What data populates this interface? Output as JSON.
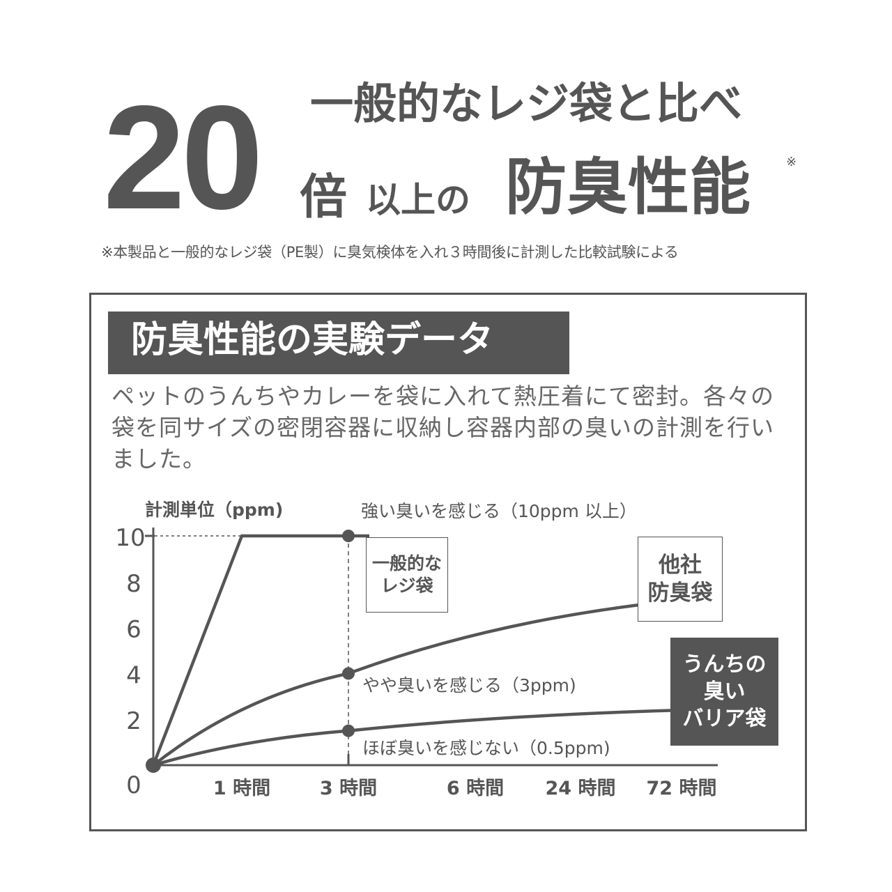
{
  "headline": {
    "line1": "一般的なレジ袋と比べ",
    "number": "20",
    "bai": "倍",
    "ijou": "以上の",
    "emphasis": "防臭性能",
    "note_mark": "※"
  },
  "footnote": "※本製品と一般的なレジ袋（PE製）に臭気検体を入れ３時間後に計測した比較試験による",
  "section": {
    "title": "防臭性能の実験データ",
    "description_lines": [
      "ペットのうんちやカレーを袋に入れて熱圧着にて密封。各々の",
      "袋を同サイズの密閉容器に収納し容器内部の臭いの計測を行い",
      "ました。"
    ]
  },
  "chart_data": {
    "type": "line",
    "ylabel": "計測単位（ppm)",
    "y_ticks": [
      "0",
      "2",
      "4",
      "6",
      "8",
      "10"
    ],
    "ylim": [
      0,
      10
    ],
    "categories": [
      "0",
      "1 時間",
      "3 時間",
      "6 時間",
      "24 時間",
      "72 時間"
    ],
    "x_tick_labels": [
      "1 時間",
      "3 時間",
      "6 時間",
      "24 時間",
      "72 時間"
    ],
    "grid": false,
    "color": "#555555",
    "series": [
      {
        "name": "一般的な\nレジ袋",
        "label_lines": [
          "一般的な",
          "レジ袋"
        ],
        "box_style": "outline",
        "points": [
          {
            "x": "0",
            "y": 0
          },
          {
            "x": "1 時間",
            "y": 10
          },
          {
            "x": "3 時間",
            "y": 10
          }
        ],
        "marker_at": "3 時間",
        "curve": false
      },
      {
        "name": "他社\n防臭袋",
        "label_lines": [
          "他社",
          "防臭袋"
        ],
        "box_style": "outline",
        "points": [
          {
            "x": "0",
            "y": 0
          },
          {
            "x": "3 時間",
            "y": 4
          },
          {
            "x": "72 時間",
            "y": 7.2
          }
        ],
        "marker_at": "3 時間",
        "curve": true
      },
      {
        "name": "うんちの\n臭い\nバリア袋",
        "label_lines": [
          "うんちの",
          "臭い",
          "バリア袋"
        ],
        "box_style": "filled",
        "points": [
          {
            "x": "0",
            "y": 0
          },
          {
            "x": "3 時間",
            "y": 1.5
          },
          {
            "x": "72 時間",
            "y": 2.4
          }
        ],
        "marker_at": "3 時間",
        "curve": true
      }
    ],
    "annotations": [
      {
        "text": "強い臭いを感じる（10ppm 以上）",
        "at_y": 10
      },
      {
        "text": "やや臭いを感じる（3ppm)",
        "at_y": 4
      },
      {
        "text": "ほぼ臭いを感じない（0.5ppm)",
        "at_y": 1.5
      }
    ],
    "reference_lines": [
      {
        "type": "horizontal-dashed",
        "y": 10
      },
      {
        "type": "vertical-dashed",
        "x": "3 時間"
      }
    ]
  }
}
